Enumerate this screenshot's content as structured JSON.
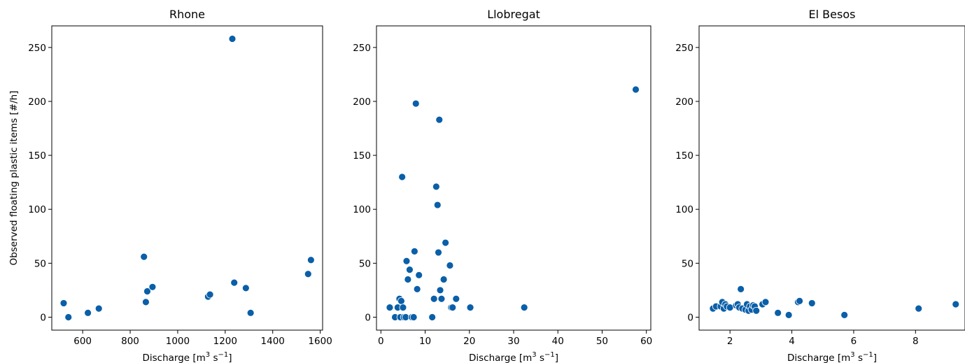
{
  "figure": {
    "ylabel": "Observed floating plastic items [#/h]",
    "marker_color": "#0a5fa8"
  },
  "chart_data": [
    {
      "type": "scatter",
      "title": "Rhone",
      "xlabel_base": "Discharge [m",
      "xlabel_sup1": "3",
      "xlabel_mid": " s",
      "xlabel_sup2": "−1",
      "xlabel_end": "]",
      "xlim": [
        470,
        1610
      ],
      "ylim": [
        -12,
        270
      ],
      "xticks": [
        600,
        800,
        1000,
        1200,
        1400,
        1600
      ],
      "xtick_labels": [
        "600",
        "800",
        "1000",
        "1200",
        "1400",
        "1600"
      ],
      "yticks": [
        0,
        50,
        100,
        150,
        200,
        250
      ],
      "ytick_labels": [
        "0",
        "50",
        "100",
        "150",
        "200",
        "250"
      ],
      "x": [
        520,
        540,
        622,
        668,
        858,
        866,
        872,
        894,
        1128,
        1136,
        1230,
        1238,
        1287,
        1307,
        1549,
        1561
      ],
      "y": [
        13,
        0,
        4,
        8,
        56,
        14,
        24,
        28,
        19,
        21,
        258,
        32,
        27,
        4,
        40,
        53
      ]
    },
    {
      "type": "scatter",
      "title": "Llobregat",
      "xlabel_base": "Discharge [m",
      "xlabel_sup1": "3",
      "xlabel_mid": " s",
      "xlabel_sup2": "−1",
      "xlabel_end": "]",
      "xlim": [
        -1,
        61
      ],
      "ylim": [
        -12,
        270
      ],
      "xticks": [
        0,
        10,
        20,
        30,
        40,
        50,
        60
      ],
      "xtick_labels": [
        "0",
        "10",
        "20",
        "30",
        "40",
        "50",
        "60"
      ],
      "yticks": [
        0,
        50,
        100,
        150,
        200,
        250
      ],
      "ytick_labels": [
        "0",
        "50",
        "100",
        "150",
        "200",
        "250"
      ],
      "x": [
        2.0,
        3.2,
        3.8,
        4.2,
        4.4,
        4.6,
        4.8,
        5.0,
        5.2,
        5.6,
        5.8,
        6.1,
        6.5,
        7.0,
        7.4,
        7.6,
        7.9,
        8.2,
        8.6,
        11.6,
        12.0,
        12.5,
        12.8,
        13.0,
        13.2,
        13.4,
        13.7,
        14.2,
        14.6,
        15.6,
        15.9,
        16.2,
        17.0,
        20.2,
        32.4,
        57.6
      ],
      "y": [
        9,
        0,
        9,
        17,
        0,
        15,
        130,
        9,
        0,
        0,
        52,
        35,
        44,
        0,
        0,
        61,
        198,
        26,
        39,
        0,
        17,
        121,
        104,
        60,
        183,
        25,
        17,
        35,
        69,
        48,
        9,
        9,
        17,
        9,
        9,
        211
      ]
    },
    {
      "type": "scatter",
      "title": "El Besos",
      "xlabel_base": "Discharge [m",
      "xlabel_sup1": "3",
      "xlabel_mid": " s",
      "xlabel_sup2": "−1",
      "xlabel_end": "]",
      "xlim": [
        1.0,
        9.6
      ],
      "ylim": [
        -12,
        270
      ],
      "xticks": [
        2,
        4,
        6,
        8
      ],
      "xtick_labels": [
        "2",
        "4",
        "6",
        "8"
      ],
      "yticks": [
        0,
        50,
        100,
        150,
        200,
        250
      ],
      "ytick_labels": [
        "0",
        "50",
        "100",
        "150",
        "200",
        "250"
      ],
      "x": [
        1.45,
        1.55,
        1.7,
        1.75,
        1.8,
        1.85,
        1.9,
        2.0,
        2.2,
        2.25,
        2.3,
        2.35,
        2.4,
        2.5,
        2.55,
        2.6,
        2.65,
        2.7,
        2.75,
        2.8,
        2.85,
        3.05,
        3.15,
        3.55,
        3.9,
        4.2,
        4.25,
        4.65,
        5.7,
        8.1,
        9.3
      ],
      "y": [
        8,
        10,
        10,
        14,
        8,
        12,
        10,
        9,
        11,
        12,
        9,
        26,
        8,
        7,
        12,
        6,
        10,
        7,
        11,
        10,
        6,
        12,
        14,
        4,
        2,
        14,
        15,
        13,
        2,
        8,
        12
      ]
    }
  ]
}
